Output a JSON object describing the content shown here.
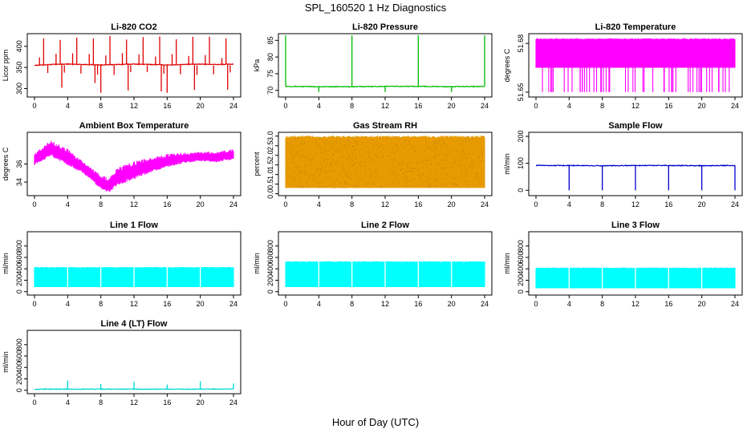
{
  "figure": {
    "title": "SPL_160520  1 Hz Diagnostics",
    "xlabel": "Hour of Day (UTC)"
  },
  "chart_data": [
    {
      "type": "line",
      "title": "Li-820 CO2",
      "ylabel": "Licor ppm",
      "color": "#e00000",
      "xlim": [
        0,
        24
      ],
      "ylim": [
        280,
        430
      ],
      "xticks": [
        0,
        4,
        8,
        12,
        16,
        20,
        24
      ],
      "yticks": [
        300,
        350,
        400
      ],
      "series": [
        {
          "x": [
            0,
            2,
            4,
            6,
            8,
            10,
            12,
            14,
            16,
            18,
            20,
            22,
            24
          ],
          "y": [
            355,
            357,
            358,
            357,
            356,
            357,
            358,
            357,
            356,
            357,
            358,
            357,
            358
          ],
          "spike_low": 290,
          "spike_high": 425
        }
      ]
    },
    {
      "type": "line",
      "title": "Li-820 Pressure",
      "ylabel": "kPa",
      "color": "#00bb00",
      "xlim": [
        0,
        24
      ],
      "ylim": [
        68,
        87
      ],
      "xticks": [
        0,
        4,
        8,
        12,
        16,
        20,
        24
      ],
      "yticks": [
        70,
        75,
        80,
        85
      ],
      "series": [
        {
          "x": [
            0,
            4,
            8,
            12,
            16,
            20,
            24
          ],
          "y": [
            71.2,
            71.1,
            71.1,
            71.2,
            71.2,
            71.1,
            71.2
          ],
          "spike_low": 69.5,
          "spike_high": 86.5
        }
      ]
    },
    {
      "type": "area",
      "title": "Li-820 Temperature",
      "ylabel": "degrees C",
      "color": "#ff00ff",
      "xlim": [
        0,
        24
      ],
      "ylim": [
        51.647,
        51.686
      ],
      "xticks": [
        0,
        4,
        8,
        12,
        16,
        20,
        24
      ],
      "yticks": [
        51.65,
        51.68
      ],
      "series": [
        {
          "x": [
            0,
            24
          ],
          "y_low": 51.665,
          "y_high": 51.683,
          "dips_to": 51.65
        }
      ]
    },
    {
      "type": "area",
      "title": "Ambient Box Temperature",
      "ylabel": "degrees C",
      "color": "#ff00ff",
      "xlim": [
        0,
        24
      ],
      "ylim": [
        32.5,
        39.5
      ],
      "xticks": [
        0,
        4,
        8,
        12,
        16,
        20,
        24
      ],
      "yticks": [
        34,
        36
      ],
      "series": [
        {
          "x": [
            0,
            2,
            4,
            6,
            8,
            9,
            10,
            12,
            14,
            16,
            18,
            20,
            22,
            24
          ],
          "y_low": [
            36.0,
            37.0,
            36.0,
            35.0,
            33.4,
            33.0,
            33.8,
            34.5,
            35.2,
            35.8,
            36.2,
            36.4,
            36.3,
            36.6
          ],
          "y_high": [
            37.0,
            38.4,
            37.4,
            36.0,
            34.6,
            34.2,
            35.4,
            36.0,
            36.5,
            36.9,
            37.1,
            37.2,
            37.2,
            37.5
          ]
        }
      ]
    },
    {
      "type": "area",
      "title": "Gas Stream RH",
      "ylabel": "percent",
      "color": "#e89b00",
      "xlim": [
        0,
        24
      ],
      "ylim": [
        -0.1,
        3.2
      ],
      "xticks": [
        0,
        4,
        8,
        12,
        16,
        20,
        24
      ],
      "yticks": [
        0.0,
        0.5,
        1.0,
        1.5,
        2.0,
        2.5,
        3.0
      ],
      "series": [
        {
          "x": [
            0,
            24
          ],
          "y_low": 0.3,
          "y_high": 3.0
        }
      ]
    },
    {
      "type": "line",
      "title": "Sample Flow",
      "ylabel": "ml/min",
      "color": "#0000cc",
      "xlim": [
        0,
        24
      ],
      "ylim": [
        -20,
        215
      ],
      "xticks": [
        0,
        4,
        8,
        12,
        16,
        20,
        24
      ],
      "yticks": [
        0,
        100,
        200
      ],
      "series": [
        {
          "x": [
            0,
            4,
            8,
            12,
            16,
            20,
            24
          ],
          "y": [
            92,
            92,
            91,
            92,
            92,
            91,
            92
          ],
          "spike_low": 0
        }
      ]
    },
    {
      "type": "area",
      "title": "Line 1 Flow",
      "ylabel": "ml/min",
      "color": "#00ffff",
      "xlim": [
        0,
        24
      ],
      "ylim": [
        -60,
        1050
      ],
      "xticks": [
        0,
        4,
        8,
        12,
        16,
        20,
        24
      ],
      "yticks": [
        0,
        200,
        400,
        600,
        800
      ],
      "series": [
        {
          "x": [
            0,
            24
          ],
          "y_low": 80,
          "y_high": 430
        }
      ]
    },
    {
      "type": "area",
      "title": "Line 2 Flow",
      "ylabel": "ml/min",
      "color": "#00ffff",
      "xlim": [
        0,
        24
      ],
      "ylim": [
        -60,
        1050
      ],
      "xticks": [
        0,
        4,
        8,
        12,
        16,
        20,
        24
      ],
      "yticks": [
        0,
        200,
        400,
        600,
        800
      ],
      "series": [
        {
          "x": [
            0,
            24
          ],
          "y_low": 80,
          "y_high": 530
        }
      ]
    },
    {
      "type": "area",
      "title": "Line 3 Flow",
      "ylabel": "ml/min",
      "color": "#00ffff",
      "xlim": [
        0,
        24
      ],
      "ylim": [
        -60,
        1050
      ],
      "xticks": [
        0,
        4,
        8,
        12,
        16,
        20,
        24
      ],
      "yticks": [
        0,
        200,
        400,
        600,
        800
      ],
      "series": [
        {
          "x": [
            0,
            24
          ],
          "y_low": 60,
          "y_high": 420
        }
      ]
    },
    {
      "type": "line",
      "title": "Line 4 (LT) Flow",
      "ylabel": "ml/min",
      "color": "#00d8d8",
      "xlim": [
        0,
        24
      ],
      "ylim": [
        -60,
        1050
      ],
      "xticks": [
        0,
        4,
        8,
        12,
        16,
        20,
        24
      ],
      "yticks": [
        0,
        200,
        400,
        600,
        800
      ],
      "series": [
        {
          "x": [
            0,
            4,
            8,
            12,
            16,
            20,
            24
          ],
          "y": [
            20,
            20,
            20,
            20,
            20,
            20,
            20
          ],
          "spikes_at": [
            4,
            8,
            12,
            16,
            20,
            24
          ],
          "spike_heights": [
            170,
            110,
            150,
            100,
            160,
            120
          ]
        }
      ]
    }
  ]
}
